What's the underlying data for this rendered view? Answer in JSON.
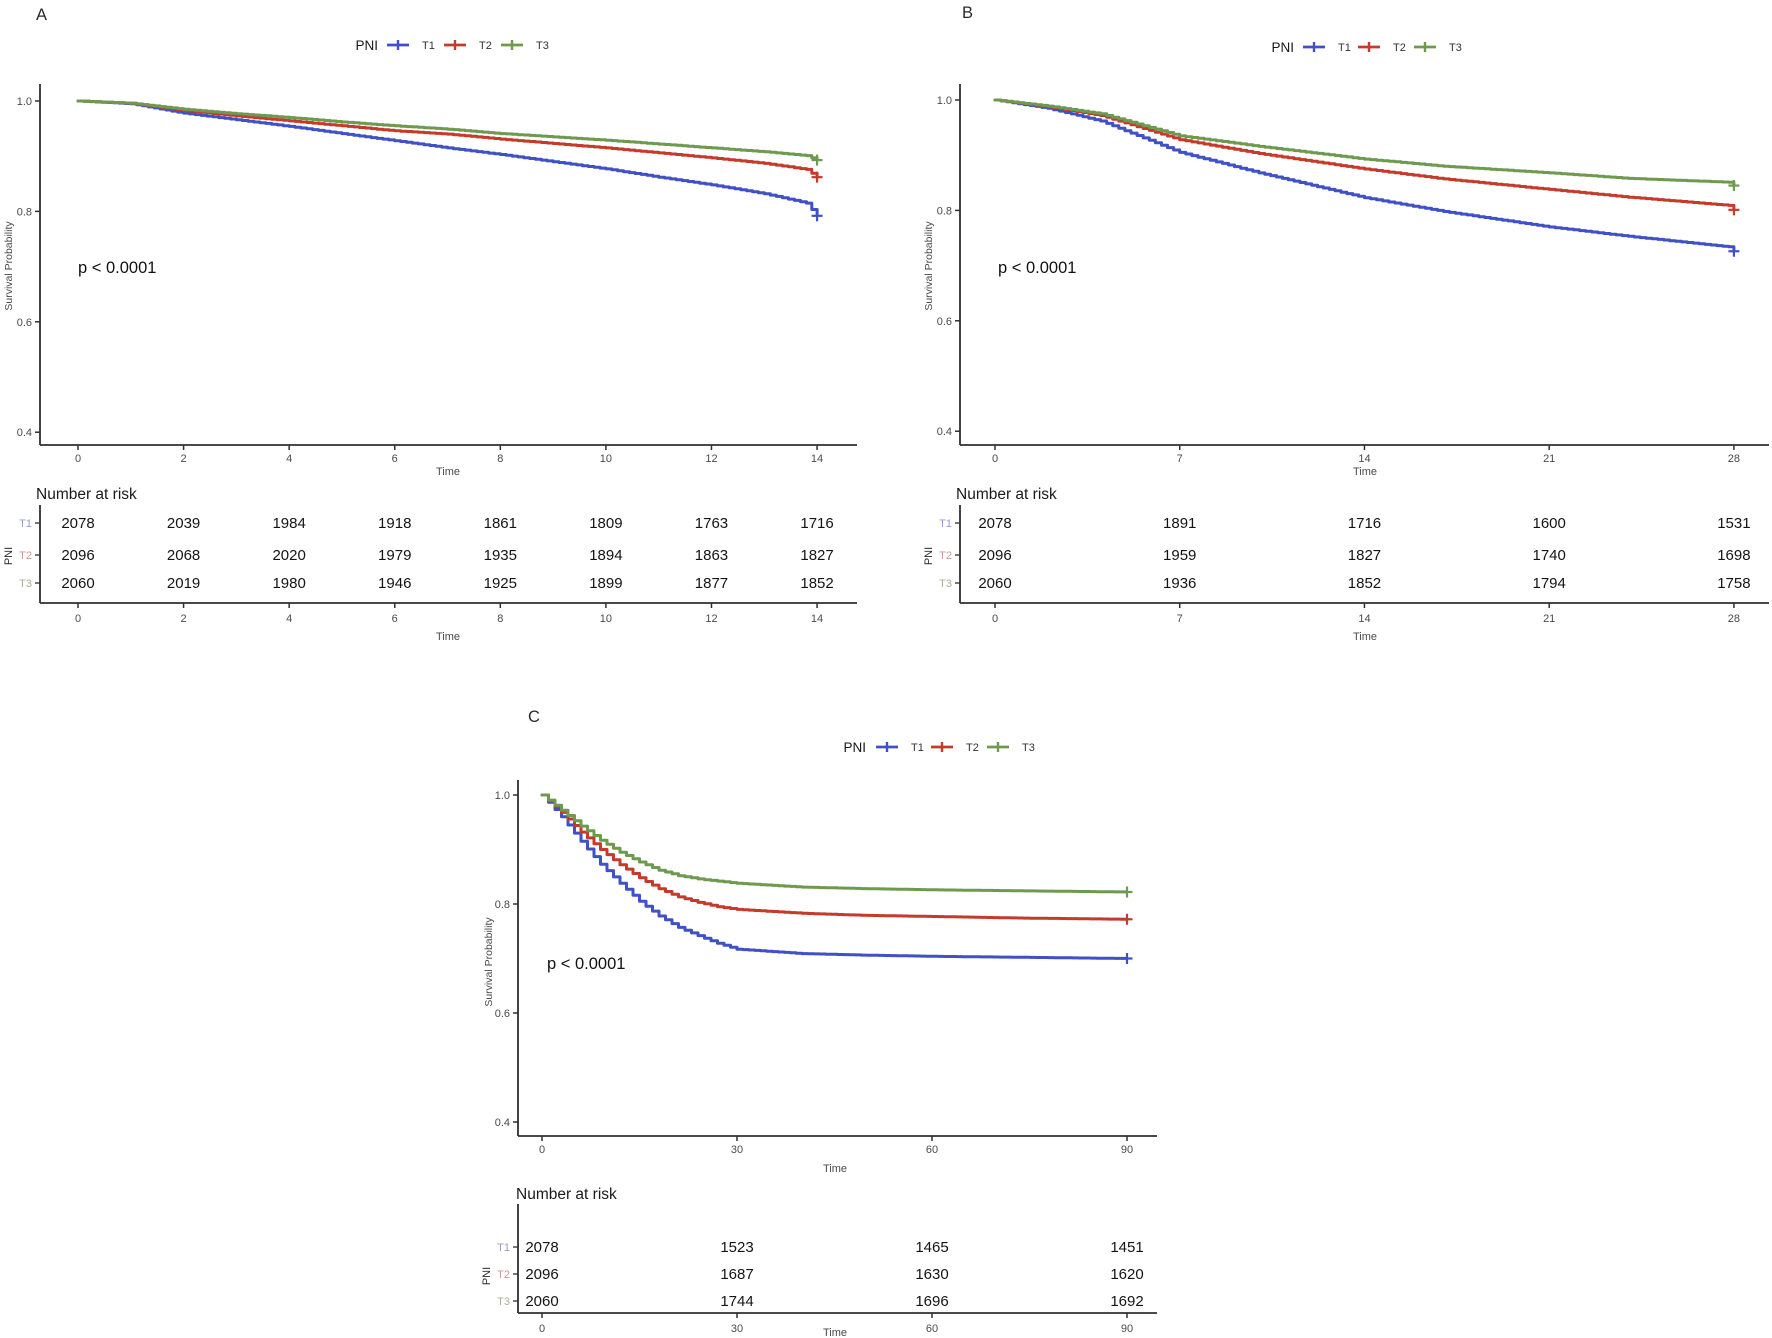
{
  "figure_colors": {
    "t1": "#3F51C5",
    "t2": "#C43B2C",
    "t3": "#6E9A50",
    "axis": "#2f2f2f"
  },
  "chart_data": [
    {
      "panel_label": "A",
      "type": "line",
      "subtype": "kaplan-meier",
      "legend_title": "PNI",
      "xlabel": "Time",
      "ylabel": "Survival Probability",
      "pvalue_text": "p < 0.0001",
      "xlim": [
        0,
        14
      ],
      "ylim": [
        0.4,
        1.0
      ],
      "xticks": [
        0,
        2,
        4,
        6,
        8,
        10,
        12,
        14
      ],
      "yticks": [
        "1.0",
        "0.8",
        "0.6",
        "0.4"
      ],
      "series": [
        {
          "name": "T1",
          "color": "#3F51C5",
          "x": [
            0,
            1,
            2,
            3,
            4,
            5,
            6,
            7,
            8,
            9,
            10,
            11,
            12,
            13,
            13.8,
            14
          ],
          "y": [
            1.0,
            0.995,
            0.978,
            0.966,
            0.954,
            0.941,
            0.928,
            0.915,
            0.903,
            0.89,
            0.877,
            0.862,
            0.848,
            0.832,
            0.815,
            0.792
          ]
        },
        {
          "name": "T2",
          "color": "#C43B2C",
          "x": [
            0,
            1,
            2,
            3,
            4,
            5,
            6,
            7,
            8,
            9,
            10,
            11,
            12,
            13,
            13.8,
            14
          ],
          "y": [
            1.0,
            0.996,
            0.983,
            0.973,
            0.964,
            0.955,
            0.946,
            0.94,
            0.931,
            0.923,
            0.915,
            0.906,
            0.897,
            0.887,
            0.876,
            0.862
          ]
        },
        {
          "name": "T3",
          "color": "#6E9A50",
          "x": [
            0,
            1,
            2,
            3,
            4,
            5,
            6,
            7,
            8,
            9,
            10,
            11,
            12,
            13,
            13.8,
            14
          ],
          "y": [
            1.0,
            0.996,
            0.985,
            0.977,
            0.97,
            0.962,
            0.955,
            0.949,
            0.941,
            0.935,
            0.929,
            0.922,
            0.915,
            0.908,
            0.901,
            0.893
          ]
        }
      ],
      "number_at_risk": {
        "title": "Number at risk",
        "axis_label": "PNI",
        "xlabel": "Time",
        "times": [
          0,
          2,
          4,
          6,
          8,
          10,
          12,
          14
        ],
        "rows": [
          {
            "name": "T1",
            "label_color": "#959AC9",
            "values": [
              2078,
              2039,
              1984,
              1918,
              1861,
              1809,
              1763,
              1716
            ]
          },
          {
            "name": "T2",
            "label_color": "#C59B94",
            "values": [
              2096,
              2068,
              2020,
              1979,
              1935,
              1894,
              1863,
              1827
            ]
          },
          {
            "name": "T3",
            "label_color": "#B0B18F",
            "values": [
              2060,
              2019,
              1980,
              1946,
              1925,
              1899,
              1877,
              1852
            ]
          }
        ]
      }
    },
    {
      "panel_label": "B",
      "type": "line",
      "subtype": "kaplan-meier",
      "legend_title": "PNI",
      "xlabel": "Time",
      "ylabel": "Survival Probability",
      "pvalue_text": "p < 0.0001",
      "xlim": [
        0,
        28
      ],
      "ylim": [
        0.4,
        1.0
      ],
      "xticks": [
        0,
        7,
        14,
        21,
        28
      ],
      "yticks": [
        "1.0",
        "0.8",
        "0.6",
        "0.4"
      ],
      "series": [
        {
          "name": "T1",
          "color": "#3F51C5",
          "x": [
            0,
            2,
            4,
            7,
            10,
            14,
            17,
            21,
            24,
            27.8,
            28
          ],
          "y": [
            1.0,
            0.985,
            0.962,
            0.905,
            0.868,
            0.823,
            0.798,
            0.77,
            0.753,
            0.734,
            0.726
          ]
        },
        {
          "name": "T2",
          "color": "#C43B2C",
          "x": [
            0,
            2,
            4,
            7,
            10,
            14,
            17,
            21,
            24,
            27.8,
            28
          ],
          "y": [
            1.0,
            0.988,
            0.972,
            0.928,
            0.903,
            0.875,
            0.857,
            0.838,
            0.824,
            0.809,
            0.801
          ]
        },
        {
          "name": "T3",
          "color": "#6E9A50",
          "x": [
            0,
            2,
            4,
            7,
            10,
            14,
            17,
            21,
            24,
            27.8,
            28
          ],
          "y": [
            1.0,
            0.989,
            0.975,
            0.935,
            0.916,
            0.893,
            0.88,
            0.868,
            0.858,
            0.851,
            0.845
          ]
        }
      ],
      "number_at_risk": {
        "title": "Number at risk",
        "axis_label": "PNI",
        "xlabel": "Time",
        "times": [
          0,
          7,
          14,
          21,
          28
        ],
        "rows": [
          {
            "name": "T1",
            "label_color": "#959AC9",
            "values": [
              2078,
              1891,
              1716,
              1600,
              1531
            ]
          },
          {
            "name": "T2",
            "label_color": "#C59B94",
            "values": [
              2096,
              1959,
              1827,
              1740,
              1698
            ]
          },
          {
            "name": "T3",
            "label_color": "#B0B18F",
            "values": [
              2060,
              1936,
              1852,
              1794,
              1758
            ]
          }
        ]
      }
    },
    {
      "panel_label": "C",
      "type": "line",
      "subtype": "kaplan-meier",
      "legend_title": "PNI",
      "xlabel": "Time",
      "ylabel": "Survival Probability",
      "pvalue_text": "p < 0.0001",
      "xlim": [
        0,
        90
      ],
      "ylim": [
        0.4,
        1.0
      ],
      "xticks": [
        0,
        30,
        60,
        90
      ],
      "yticks": [
        "1.0",
        "0.8",
        "0.6",
        "0.4"
      ],
      "series": [
        {
          "name": "T1",
          "color": "#3F51C5",
          "x": [
            0,
            3,
            6,
            9,
            12,
            15,
            18,
            21,
            24,
            27,
            30,
            40,
            50,
            60,
            75,
            90
          ],
          "y": [
            1.0,
            0.96,
            0.915,
            0.873,
            0.838,
            0.805,
            0.778,
            0.757,
            0.742,
            0.728,
            0.717,
            0.709,
            0.706,
            0.704,
            0.702,
            0.7
          ]
        },
        {
          "name": "T2",
          "color": "#C43B2C",
          "x": [
            0,
            3,
            6,
            9,
            12,
            15,
            18,
            21,
            24,
            27,
            30,
            40,
            50,
            60,
            75,
            90
          ],
          "y": [
            1.0,
            0.968,
            0.932,
            0.9,
            0.872,
            0.848,
            0.828,
            0.813,
            0.803,
            0.795,
            0.79,
            0.783,
            0.779,
            0.777,
            0.774,
            0.772
          ]
        },
        {
          "name": "T3",
          "color": "#6E9A50",
          "x": [
            0,
            3,
            6,
            9,
            12,
            15,
            18,
            21,
            24,
            27,
            30,
            40,
            50,
            60,
            75,
            90
          ],
          "y": [
            1.0,
            0.972,
            0.943,
            0.917,
            0.895,
            0.877,
            0.862,
            0.852,
            0.846,
            0.842,
            0.838,
            0.831,
            0.828,
            0.826,
            0.824,
            0.822
          ]
        }
      ],
      "number_at_risk": {
        "title": "Number at risk",
        "axis_label": "PNI",
        "xlabel": "Time",
        "times": [
          0,
          30,
          60,
          90
        ],
        "rows": [
          {
            "name": "T1",
            "label_color": "#959AC9",
            "values": [
              2078,
              1523,
              1465,
              1451
            ]
          },
          {
            "name": "T2",
            "label_color": "#C59B94",
            "values": [
              2096,
              1687,
              1630,
              1620
            ]
          },
          {
            "name": "T3",
            "label_color": "#B0B18F",
            "values": [
              2060,
              1744,
              1696,
              1692
            ]
          }
        ]
      }
    }
  ]
}
